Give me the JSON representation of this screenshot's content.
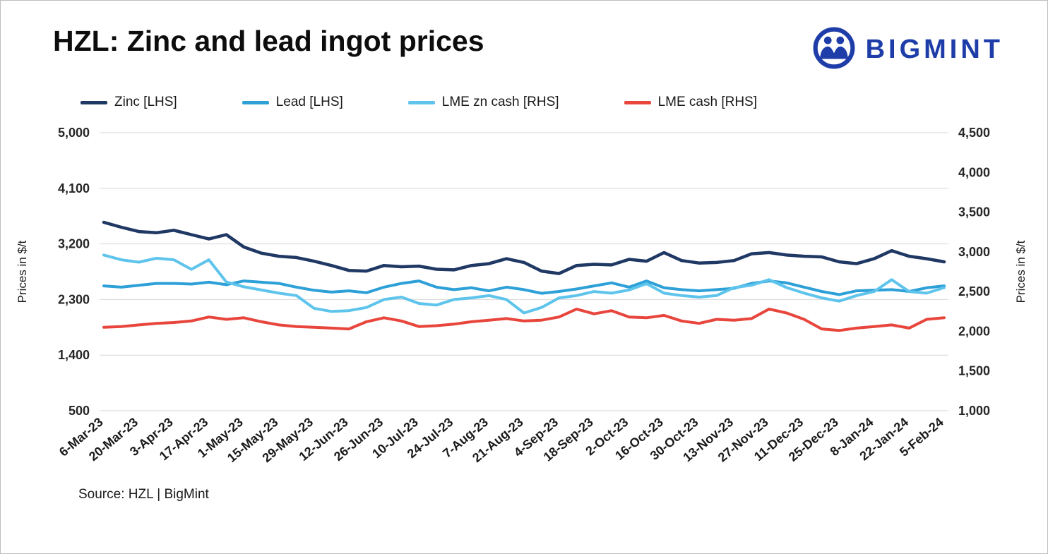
{
  "page": {
    "title": "HZL: Zinc and lead ingot prices",
    "source": "Source: HZL | BigMint",
    "brand": {
      "name": "BIGMINT",
      "color": "#1E3DA8"
    }
  },
  "chart_data": {
    "type": "line",
    "title": "HZL: Zinc and lead ingot prices",
    "grid": true,
    "legend_position": "top",
    "x_label_interval": 2,
    "x": [
      "6-Mar-23",
      "13-Mar-23",
      "20-Mar-23",
      "27-Mar-23",
      "3-Apr-23",
      "10-Apr-23",
      "17-Apr-23",
      "24-Apr-23",
      "1-May-23",
      "8-May-23",
      "15-May-23",
      "22-May-23",
      "29-May-23",
      "5-Jun-23",
      "12-Jun-23",
      "19-Jun-23",
      "26-Jun-23",
      "3-Jul-23",
      "10-Jul-23",
      "17-Jul-23",
      "24-Jul-23",
      "31-Jul-23",
      "7-Aug-23",
      "14-Aug-23",
      "21-Aug-23",
      "28-Aug-23",
      "4-Sep-23",
      "11-Sep-23",
      "18-Sep-23",
      "25-Sep-23",
      "2-Oct-23",
      "9-Oct-23",
      "16-Oct-23",
      "23-Oct-23",
      "30-Oct-23",
      "6-Nov-23",
      "13-Nov-23",
      "20-Nov-23",
      "27-Nov-23",
      "4-Dec-23",
      "11-Dec-23",
      "18-Dec-23",
      "25-Dec-23",
      "1-Jan-24",
      "8-Jan-24",
      "15-Jan-24",
      "22-Jan-24",
      "29-Jan-24",
      "5-Feb-24"
    ],
    "x_tick_labels": [
      "6-Mar-23",
      "20-Mar-23",
      "3-Apr-23",
      "17-Apr-23",
      "1-May-23",
      "15-May-23",
      "29-May-23",
      "12-Jun-23",
      "26-Jun-23",
      "10-Jul-23",
      "24-Jul-23",
      "7-Aug-23",
      "21-Aug-23",
      "4-Sep-23",
      "18-Sep-23",
      "2-Oct-23",
      "16-Oct-23",
      "30-Oct-23",
      "13-Nov-23",
      "27-Nov-23",
      "11-Dec-23",
      "25-Dec-23",
      "8-Jan-24",
      "22-Jan-24",
      "5-Feb-24"
    ],
    "axes": {
      "left": {
        "label": "Prices in $/t",
        "min": 500,
        "max": 5000,
        "tick_values": [
          5000,
          4100,
          3200,
          2300,
          1400,
          500
        ],
        "tick_labels": [
          "5,000",
          "4,100",
          "3,200",
          "2,300",
          "1,400",
          "500"
        ]
      },
      "right": {
        "label": "Prices in $/t",
        "min": 1000,
        "max": 4500,
        "tick_values": [
          4500,
          4000,
          3500,
          3000,
          2500,
          2000,
          1500,
          1000
        ],
        "tick_labels": [
          "4,500",
          "4,000",
          "3,500",
          "3,000",
          "2,500",
          "2,000",
          "1,500",
          "1,000"
        ]
      }
    },
    "series": [
      {
        "name": "Zinc [LHS]",
        "axis": "left",
        "color": "#1F3864",
        "values": [
          3550,
          3470,
          3400,
          3380,
          3420,
          3350,
          3280,
          3350,
          3150,
          3050,
          3000,
          2980,
          2920,
          2850,
          2770,
          2760,
          2850,
          2830,
          2840,
          2790,
          2780,
          2850,
          2880,
          2960,
          2900,
          2760,
          2720,
          2850,
          2870,
          2860,
          2950,
          2920,
          3060,
          2930,
          2890,
          2900,
          2930,
          3040,
          3060,
          3020,
          3000,
          2990,
          2910,
          2880,
          2960,
          3090,
          3000,
          2960,
          2910
        ]
      },
      {
        "name": "Lead [LHS]",
        "axis": "left",
        "color": "#2DA0D8",
        "values": [
          2520,
          2500,
          2530,
          2560,
          2560,
          2550,
          2580,
          2540,
          2600,
          2580,
          2560,
          2500,
          2450,
          2420,
          2440,
          2410,
          2500,
          2560,
          2600,
          2500,
          2460,
          2490,
          2440,
          2500,
          2460,
          2400,
          2430,
          2470,
          2520,
          2570,
          2500,
          2600,
          2490,
          2460,
          2440,
          2460,
          2480,
          2560,
          2600,
          2570,
          2500,
          2430,
          2380,
          2440,
          2450,
          2460,
          2430,
          2490,
          2520
        ]
      },
      {
        "name": "LME zn cash [RHS]",
        "axis": "right",
        "color": "#5EC4EC",
        "values": [
          2960,
          2900,
          2870,
          2920,
          2900,
          2780,
          2900,
          2620,
          2560,
          2520,
          2480,
          2450,
          2290,
          2250,
          2260,
          2300,
          2400,
          2430,
          2350,
          2330,
          2400,
          2420,
          2450,
          2400,
          2230,
          2300,
          2420,
          2450,
          2500,
          2480,
          2520,
          2600,
          2480,
          2450,
          2430,
          2450,
          2550,
          2580,
          2650,
          2550,
          2480,
          2420,
          2380,
          2450,
          2500,
          2650,
          2500,
          2480,
          2550
        ]
      },
      {
        "name": "LME cash [RHS]",
        "axis": "right",
        "color": "#E8453C",
        "values": [
          2050,
          2060,
          2080,
          2100,
          2110,
          2130,
          2180,
          2150,
          2170,
          2120,
          2080,
          2060,
          2050,
          2040,
          2030,
          2120,
          2170,
          2130,
          2060,
          2070,
          2090,
          2120,
          2140,
          2160,
          2130,
          2140,
          2180,
          2280,
          2220,
          2260,
          2180,
          2170,
          2200,
          2130,
          2100,
          2150,
          2140,
          2160,
          2280,
          2230,
          2150,
          2030,
          2010,
          2040,
          2060,
          2080,
          2040,
          2150,
          2170
        ]
      }
    ]
  }
}
